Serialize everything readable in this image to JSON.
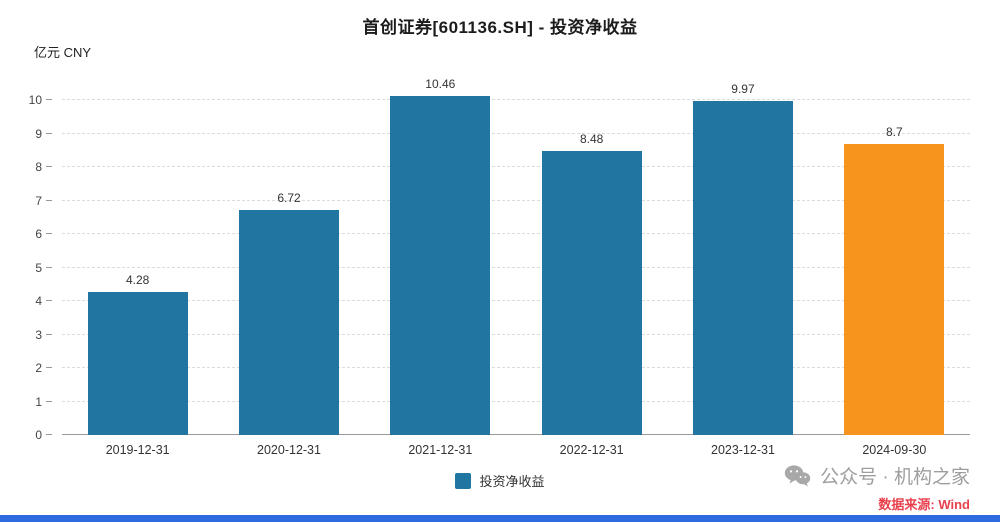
{
  "header": {
    "title": "首创证券[601136.SH] - 投资净收益",
    "unit_label": "亿元 CNY"
  },
  "chart_data": {
    "type": "bar",
    "title": "首创证券[601136.SH] - 投资净收益",
    "categories": [
      "2019-12-31",
      "2020-12-31",
      "2021-12-31",
      "2022-12-31",
      "2023-12-31",
      "2024-09-30"
    ],
    "values": [
      4.28,
      6.72,
      10.46,
      8.48,
      9.97,
      8.7
    ],
    "bar_colors": [
      "#2076A0",
      "#2076A0",
      "#2076A0",
      "#2076A0",
      "#2076A0",
      "#F7941E"
    ],
    "xlabel": "",
    "ylabel": "亿元 CNY",
    "ylim": [
      0,
      10.7
    ],
    "yticks": [
      0,
      1,
      2,
      3,
      4,
      5,
      6,
      7,
      8,
      9,
      10
    ],
    "grid": true,
    "grid_style": "dashed",
    "legend_position": "bottom",
    "legend_entries": [
      "投资净收益"
    ]
  },
  "legend": {
    "label": "投资净收益",
    "color": "#2076A0"
  },
  "footer": {
    "wechat_label": "公众号 · 机构之家",
    "source_label": "数据来源: Wind"
  },
  "colors": {
    "bar_blue": "#2076A0",
    "bar_highlight_orange": "#F7941E",
    "grid_line": "#DBDBDB",
    "axis_line": "#999999",
    "watermark_text": "#9E9E9E",
    "source_text": "#E8414D",
    "bottom_strip": "#2E6BE0"
  }
}
